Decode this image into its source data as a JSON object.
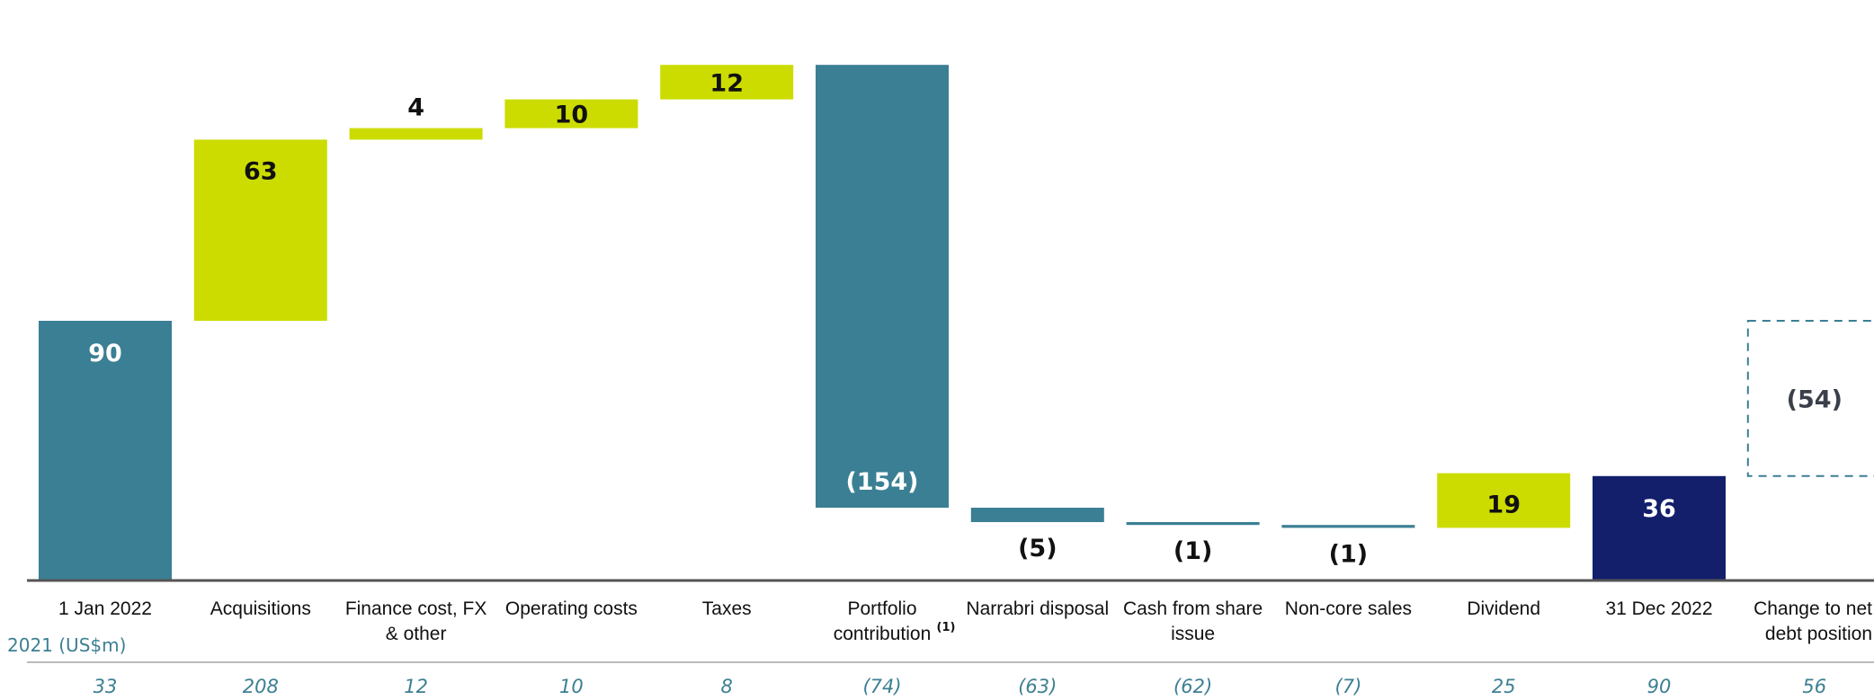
{
  "chart_data": {
    "type": "bar",
    "subtype": "waterfall",
    "title": "",
    "xlabel": "",
    "ylabel": "",
    "ylim": [
      0,
      216
    ],
    "categories": [
      "1 Jan 2022",
      "Acquisitions",
      "Finance cost, FX & other",
      "Operating costs",
      "Taxes",
      "Portfolio contribution",
      "Narrabri disposal",
      "Cash from share issue",
      "Non-core sales",
      "Dividend",
      "31 Dec 2022",
      "Change to net debt position"
    ],
    "category_lines": [
      [
        "1 Jan 2022"
      ],
      [
        "Acquisitions"
      ],
      [
        "Finance cost, FX",
        "& other"
      ],
      [
        "Operating costs"
      ],
      [
        "Taxes"
      ],
      [
        "Portfolio",
        "contribution"
      ],
      [
        "Narrabri disposal"
      ],
      [
        "Cash from share",
        "issue"
      ],
      [
        "Non-core sales"
      ],
      [
        "Dividend"
      ],
      [
        "31 Dec 2022"
      ],
      [
        "Change to net",
        "debt position"
      ]
    ],
    "footnote_marker": {
      "category_index": 5,
      "text": "(1)"
    },
    "bars": [
      {
        "kind": "total",
        "start": 0,
        "end": 90,
        "label": "90"
      },
      {
        "kind": "increase",
        "start": 90,
        "end": 153,
        "label": "63"
      },
      {
        "kind": "increase",
        "start": 153,
        "end": 157,
        "label": "4"
      },
      {
        "kind": "increase",
        "start": 157,
        "end": 167,
        "label": "10"
      },
      {
        "kind": "increase",
        "start": 167,
        "end": 179,
        "label": "12"
      },
      {
        "kind": "decrease",
        "start": 179,
        "end": 25,
        "label": "(154)"
      },
      {
        "kind": "decrease",
        "start": 25,
        "end": 20,
        "label": "(5)"
      },
      {
        "kind": "decrease",
        "start": 20,
        "end": 19,
        "label": "(1)"
      },
      {
        "kind": "decrease",
        "start": 19,
        "end": 18,
        "label": "(1)"
      },
      {
        "kind": "increase",
        "start": 18,
        "end": 37,
        "label": "19"
      },
      {
        "kind": "total",
        "start": 0,
        "end": 36,
        "label": "36"
      },
      {
        "kind": "change",
        "start": 36,
        "end": 90,
        "label": "(54)"
      }
    ],
    "prior_year": {
      "title": "2021 (US$m)",
      "values": [
        "33",
        "208",
        "12",
        "10",
        "8",
        "(74)",
        "(63)",
        "(62)",
        "(7)",
        "25",
        "90",
        "56"
      ]
    },
    "grid": false,
    "legend": "none",
    "colors": {
      "increase": "#ccdc00",
      "decrease": "#3a7f93",
      "total_start": "#3a7f93",
      "total_end": "#131f6b",
      "change_outline": "#3a7f93",
      "axis": "#555555",
      "prior_text": "#3d7f93",
      "label_dark": "#111111",
      "label_light": "#ffffff",
      "change_label": "#3a3f4a"
    }
  }
}
